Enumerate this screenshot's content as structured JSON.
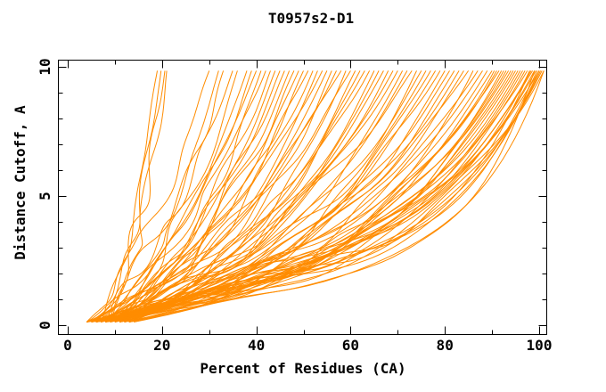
{
  "chart_data": {
    "type": "line",
    "title": "T0957s2-D1",
    "xlabel": "Percent of Residues (CA)",
    "ylabel": "Distance Cutoff, A",
    "xlim": [
      -2.1,
      101.6
    ],
    "ylim": [
      -0.35,
      10.28
    ],
    "x_major_ticks": [
      0,
      20,
      40,
      60,
      80,
      100
    ],
    "x_minor_ticks": [
      10,
      30,
      50,
      70,
      90
    ],
    "y_major_ticks": [
      0,
      5,
      10
    ],
    "y_minor_ticks": [
      1,
      2,
      3,
      4,
      6,
      7,
      8,
      9
    ],
    "grid": false,
    "legend": "none",
    "line_color": "#FF8C00",
    "frame_color": "#000000",
    "text_color": "#000000",
    "curve_y_start": 0.12,
    "curve_y_end": 9.85,
    "curve_params_format": "[x_start, x_end, mix, power] -> y(x) = y_start + (y_end - y_start) * ((1-mix)*u + mix*u^power), u = (x - x_start)/(x_end - x_start)",
    "curves": [
      [
        7,
        19,
        0.55,
        2.0
      ],
      [
        8,
        19.8,
        0.5,
        2.2
      ],
      [
        8.5,
        20.6,
        0.55,
        2.0
      ],
      [
        9,
        21,
        0.5,
        2.4
      ],
      [
        4,
        30,
        0.5,
        2
      ],
      [
        6,
        32,
        0.55,
        2.1
      ],
      [
        8,
        33,
        0.6,
        2
      ],
      [
        5,
        35,
        0.5,
        2.3
      ],
      [
        10,
        36,
        0.55,
        2
      ],
      [
        7,
        38,
        0.6,
        2.2
      ],
      [
        9,
        39,
        0.5,
        2
      ],
      [
        4,
        40,
        0.55,
        2.4
      ],
      [
        11,
        41,
        0.6,
        2.1
      ],
      [
        6,
        42,
        0.5,
        2.2
      ],
      [
        8,
        43,
        0.65,
        2
      ],
      [
        12,
        44,
        0.55,
        2.3
      ],
      [
        5,
        45,
        0.6,
        2.5
      ],
      [
        9,
        46,
        0.5,
        2.1
      ],
      [
        7,
        47,
        0.65,
        2.4
      ],
      [
        10,
        48,
        0.55,
        2.2
      ],
      [
        4,
        49,
        0.6,
        2.6
      ],
      [
        12,
        50,
        0.5,
        2.3
      ],
      [
        6,
        51,
        0.65,
        2.2
      ],
      [
        8,
        52,
        0.55,
        2.7
      ],
      [
        11,
        53,
        0.6,
        2.4
      ],
      [
        5,
        54,
        0.5,
        2.5
      ],
      [
        9,
        55,
        0.65,
        2.3
      ],
      [
        13,
        56,
        0.55,
        2.8
      ],
      [
        7,
        57,
        0.6,
        2.5
      ],
      [
        4,
        58,
        0.55,
        2.4
      ],
      [
        10,
        59,
        0.65,
        2.9
      ],
      [
        6,
        60,
        0.5,
        2.6
      ],
      [
        12,
        61,
        0.6,
        2.5
      ],
      [
        8,
        62,
        0.55,
        3
      ],
      [
        5,
        63,
        0.65,
        2.7
      ],
      [
        11,
        64,
        0.5,
        2.6
      ],
      [
        9,
        65,
        0.6,
        3.1
      ],
      [
        13,
        66,
        0.55,
        2.8
      ],
      [
        7,
        67,
        0.65,
        2.7
      ],
      [
        4,
        68,
        0.6,
        3.2
      ],
      [
        10,
        69,
        0.5,
        2.9
      ],
      [
        6,
        70,
        0.65,
        2.8
      ],
      [
        12,
        71,
        0.55,
        3.3
      ],
      [
        8,
        72,
        0.6,
        3
      ],
      [
        5,
        73,
        0.5,
        2.9
      ],
      [
        11,
        74,
        0.65,
        3.4
      ],
      [
        9,
        75,
        0.55,
        3.1
      ],
      [
        13,
        76,
        0.6,
        3
      ],
      [
        7,
        77,
        0.5,
        3.5
      ],
      [
        4,
        78,
        0.65,
        3.2
      ],
      [
        10,
        79,
        0.55,
        3.1
      ],
      [
        6,
        80,
        0.6,
        3.6
      ],
      [
        12,
        81,
        0.5,
        3.3
      ],
      [
        8,
        82,
        0.65,
        3.2
      ],
      [
        5,
        83,
        0.55,
        3.7
      ],
      [
        11,
        84,
        0.6,
        3.4
      ],
      [
        9,
        85,
        0.5,
        3.3
      ],
      [
        13,
        86,
        0.65,
        3.8
      ],
      [
        7,
        87,
        0.55,
        3.5
      ],
      [
        4,
        88,
        0.6,
        3.4
      ],
      [
        10,
        89,
        0.5,
        3.9
      ],
      [
        6,
        90,
        0.65,
        3.6
      ],
      [
        12,
        90.5,
        0.55,
        4
      ],
      [
        8,
        91,
        0.6,
        3.7
      ],
      [
        5,
        91.5,
        0.5,
        4.1
      ],
      [
        11,
        92,
        0.65,
        3.8
      ],
      [
        9,
        92.5,
        0.55,
        4.2
      ],
      [
        13,
        93,
        0.6,
        3.9
      ],
      [
        7,
        93.5,
        0.5,
        4.3
      ],
      [
        4,
        94,
        0.65,
        4
      ],
      [
        10,
        94.5,
        0.55,
        4.4
      ],
      [
        6,
        95,
        0.6,
        4.1
      ],
      [
        12,
        95.5,
        0.5,
        4.5
      ],
      [
        8,
        96,
        0.65,
        4.2
      ],
      [
        5,
        96.5,
        0.55,
        4.6
      ],
      [
        11,
        97,
        0.6,
        4.3
      ],
      [
        9,
        97.5,
        0.5,
        4.7
      ],
      [
        13,
        98,
        0.65,
        4.4
      ],
      [
        7,
        98.3,
        0.55,
        4.8
      ],
      [
        4,
        98.6,
        0.6,
        4.5
      ],
      [
        10,
        99,
        0.5,
        5
      ],
      [
        14,
        99,
        0.65,
        7
      ],
      [
        6,
        99.3,
        0.55,
        4.9
      ],
      [
        12,
        99.6,
        0.6,
        5.2
      ],
      [
        8,
        100,
        0.5,
        5
      ],
      [
        5,
        100,
        0.62,
        6
      ],
      [
        11,
        100.3,
        0.55,
        5.4
      ],
      [
        9,
        100.6,
        0.6,
        5
      ],
      [
        13,
        101,
        0.65,
        6.5
      ],
      [
        7,
        101,
        0.5,
        5.6
      ],
      [
        10,
        100,
        0.58,
        5.8
      ],
      [
        6,
        98,
        0.62,
        6.2
      ]
    ]
  }
}
